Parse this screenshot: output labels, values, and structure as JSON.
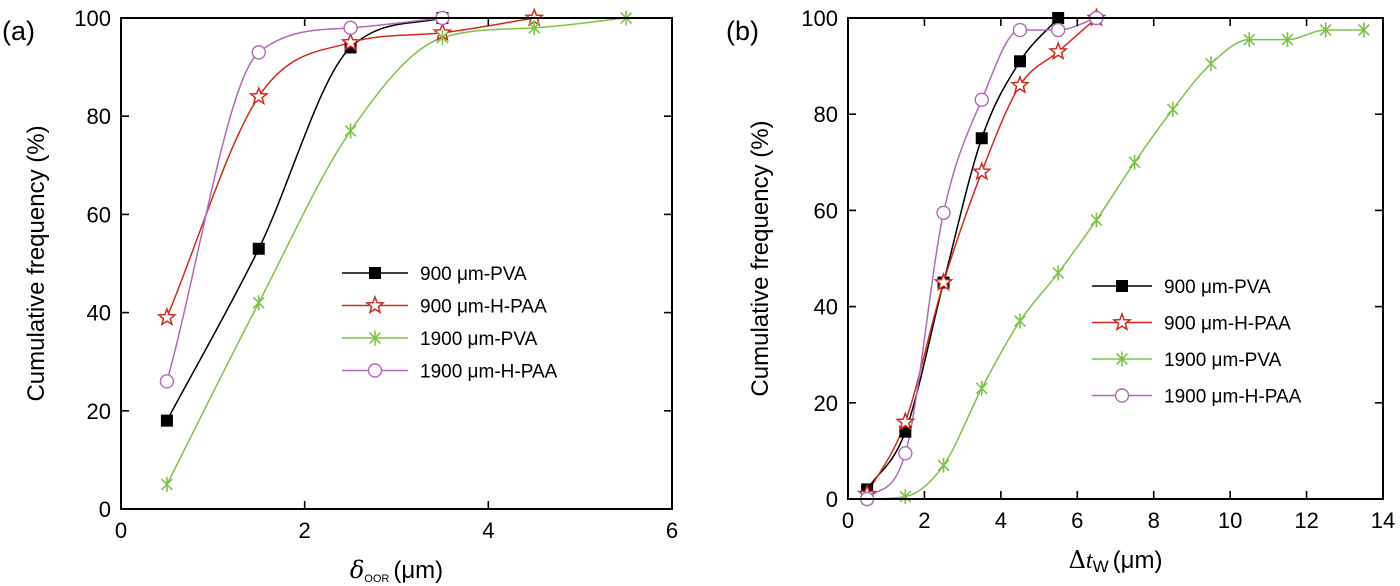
{
  "chart_data": [
    {
      "type": "line",
      "panel_label": "(a)",
      "xlabel": {
        "symbol": "δ",
        "sub": "OOR",
        "unit": "(μm)"
      },
      "ylabel": "Cumulative frequency (%)",
      "xlim": [
        0,
        6
      ],
      "ylim": [
        0,
        100
      ],
      "xticks": [
        0,
        2,
        4,
        6
      ],
      "yticks": [
        0,
        20,
        40,
        60,
        80,
        100
      ],
      "grid": false,
      "legend_placement": "center-right",
      "series": [
        {
          "name": "900 μm-PVA",
          "marker": "filled-square",
          "color": "#000000",
          "x": [
            0.5,
            1.5,
            2.5,
            3.5
          ],
          "y": [
            18,
            53,
            94,
            100
          ]
        },
        {
          "name": "900 μm-H-PAA",
          "marker": "open-star",
          "color": "#d42a1c",
          "x": [
            0.5,
            1.5,
            2.5,
            3.5,
            4.5
          ],
          "y": [
            39,
            84,
            95,
            97,
            100
          ]
        },
        {
          "name": "1900 μm-PVA",
          "marker": "asterisk",
          "color": "#7fc24a",
          "x": [
            0.5,
            1.5,
            2.5,
            3.5,
            4.5,
            5.5
          ],
          "y": [
            5,
            42,
            77,
            96,
            98,
            100
          ]
        },
        {
          "name": "1900 μm-H-PAA",
          "marker": "open-circle",
          "color": "#b06ab9",
          "x": [
            0.5,
            1.5,
            2.5,
            3.5
          ],
          "y": [
            26,
            93,
            98,
            100
          ]
        }
      ]
    },
    {
      "type": "line",
      "panel_label": "(b)",
      "xlabel": {
        "symbol": "Δt",
        "sub": "W",
        "unit": "(μm)"
      },
      "ylabel": "Cumulative frequency (%)",
      "xlim": [
        0,
        14
      ],
      "ylim": [
        0,
        100
      ],
      "xticks": [
        0,
        2,
        4,
        6,
        8,
        10,
        12,
        14
      ],
      "yticks": [
        0,
        20,
        40,
        60,
        80,
        100
      ],
      "grid": false,
      "legend_placement": "center-right",
      "series": [
        {
          "name": "900 μm-PVA",
          "marker": "filled-square",
          "color": "#000000",
          "x": [
            0.5,
            1.5,
            2.5,
            3.5,
            4.5,
            5.5
          ],
          "y": [
            2,
            14,
            45,
            75,
            91,
            100
          ]
        },
        {
          "name": "900 μm-H-PAA",
          "marker": "open-star",
          "color": "#d42a1c",
          "x": [
            0.5,
            1.5,
            2.5,
            3.5,
            4.5,
            5.5,
            6.5
          ],
          "y": [
            1,
            16,
            45,
            68,
            86,
            93,
            100
          ]
        },
        {
          "name": "1900 μm-PVA",
          "marker": "asterisk",
          "color": "#7fc24a",
          "x": [
            0.5,
            1.5,
            2.5,
            3.5,
            4.5,
            5.5,
            6.5,
            7.5,
            8.5,
            9.5,
            10.5,
            11.5,
            12.5,
            13.5
          ],
          "y": [
            0,
            0.5,
            7,
            23,
            37,
            47,
            58,
            70,
            81,
            90.5,
            95.5,
            95.5,
            97.5,
            97.5
          ]
        },
        {
          "name": "1900 μm-H-PAA",
          "marker": "open-circle",
          "color": "#b06ab9",
          "x": [
            0.5,
            1.5,
            2.5,
            3.5,
            4.5,
            5.5,
            6.5
          ],
          "y": [
            0,
            9.5,
            59.5,
            83,
            97.5,
            97.5,
            100
          ]
        }
      ]
    }
  ]
}
